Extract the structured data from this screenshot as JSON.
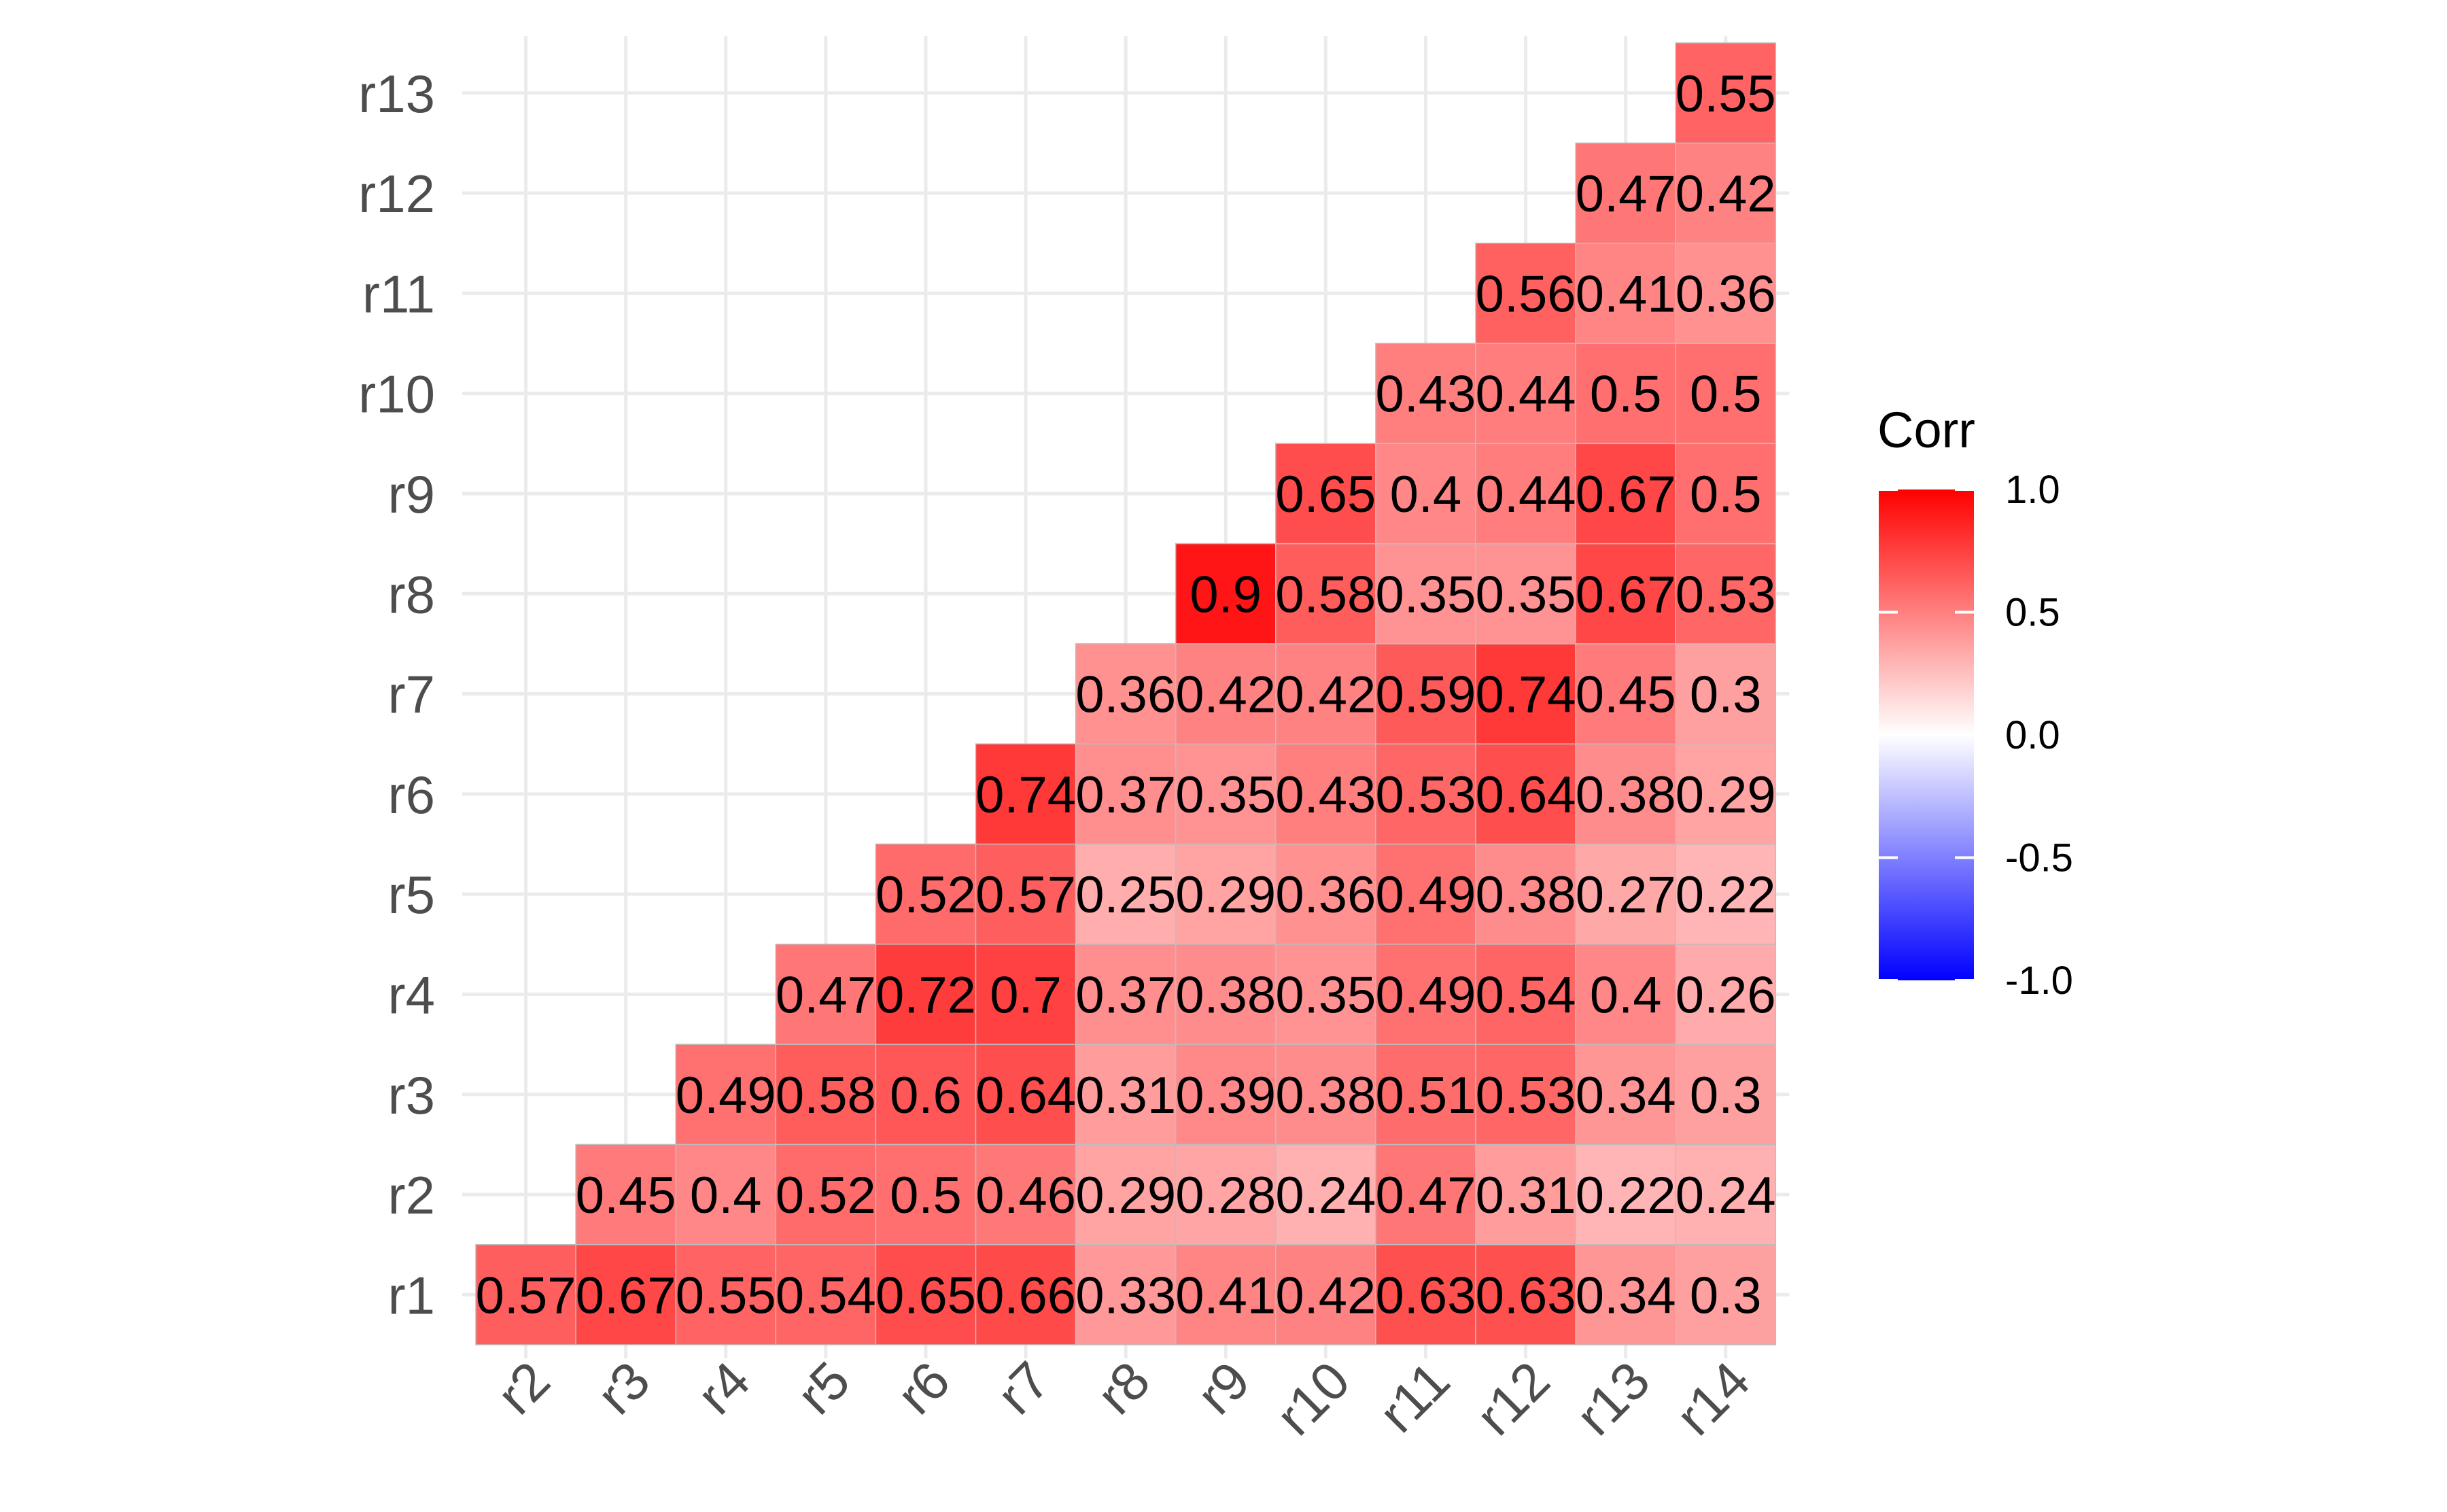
{
  "chart_data": {
    "type": "heatmap",
    "title": "",
    "xlabel": "",
    "ylabel": "",
    "x_categories": [
      "r2",
      "r3",
      "r4",
      "r5",
      "r6",
      "r7",
      "r8",
      "r9",
      "r10",
      "r11",
      "r12",
      "r13",
      "r14"
    ],
    "y_categories": [
      "r1",
      "r2",
      "r3",
      "r4",
      "r5",
      "r6",
      "r7",
      "r8",
      "r9",
      "r10",
      "r11",
      "r12",
      "r13"
    ],
    "cells": [
      {
        "x": "r2",
        "y": "r1",
        "value": 0.57
      },
      {
        "x": "r3",
        "y": "r1",
        "value": 0.67
      },
      {
        "x": "r4",
        "y": "r1",
        "value": 0.55
      },
      {
        "x": "r5",
        "y": "r1",
        "value": 0.54
      },
      {
        "x": "r6",
        "y": "r1",
        "value": 0.65
      },
      {
        "x": "r7",
        "y": "r1",
        "value": 0.66
      },
      {
        "x": "r8",
        "y": "r1",
        "value": 0.33
      },
      {
        "x": "r9",
        "y": "r1",
        "value": 0.41
      },
      {
        "x": "r10",
        "y": "r1",
        "value": 0.42
      },
      {
        "x": "r11",
        "y": "r1",
        "value": 0.63
      },
      {
        "x": "r12",
        "y": "r1",
        "value": 0.63
      },
      {
        "x": "r13",
        "y": "r1",
        "value": 0.34
      },
      {
        "x": "r14",
        "y": "r1",
        "value": 0.3
      },
      {
        "x": "r3",
        "y": "r2",
        "value": 0.45
      },
      {
        "x": "r4",
        "y": "r2",
        "value": 0.4
      },
      {
        "x": "r5",
        "y": "r2",
        "value": 0.52
      },
      {
        "x": "r6",
        "y": "r2",
        "value": 0.5
      },
      {
        "x": "r7",
        "y": "r2",
        "value": 0.46
      },
      {
        "x": "r8",
        "y": "r2",
        "value": 0.29
      },
      {
        "x": "r9",
        "y": "r2",
        "value": 0.28
      },
      {
        "x": "r10",
        "y": "r2",
        "value": 0.24
      },
      {
        "x": "r11",
        "y": "r2",
        "value": 0.47
      },
      {
        "x": "r12",
        "y": "r2",
        "value": 0.31
      },
      {
        "x": "r13",
        "y": "r2",
        "value": 0.22
      },
      {
        "x": "r14",
        "y": "r2",
        "value": 0.24
      },
      {
        "x": "r4",
        "y": "r3",
        "value": 0.49
      },
      {
        "x": "r5",
        "y": "r3",
        "value": 0.58
      },
      {
        "x": "r6",
        "y": "r3",
        "value": 0.6
      },
      {
        "x": "r7",
        "y": "r3",
        "value": 0.64
      },
      {
        "x": "r8",
        "y": "r3",
        "value": 0.31
      },
      {
        "x": "r9",
        "y": "r3",
        "value": 0.39
      },
      {
        "x": "r10",
        "y": "r3",
        "value": 0.38
      },
      {
        "x": "r11",
        "y": "r3",
        "value": 0.51
      },
      {
        "x": "r12",
        "y": "r3",
        "value": 0.53
      },
      {
        "x": "r13",
        "y": "r3",
        "value": 0.34
      },
      {
        "x": "r14",
        "y": "r3",
        "value": 0.3
      },
      {
        "x": "r5",
        "y": "r4",
        "value": 0.47
      },
      {
        "x": "r6",
        "y": "r4",
        "value": 0.72
      },
      {
        "x": "r7",
        "y": "r4",
        "value": 0.7
      },
      {
        "x": "r8",
        "y": "r4",
        "value": 0.37
      },
      {
        "x": "r9",
        "y": "r4",
        "value": 0.38
      },
      {
        "x": "r10",
        "y": "r4",
        "value": 0.35
      },
      {
        "x": "r11",
        "y": "r4",
        "value": 0.49
      },
      {
        "x": "r12",
        "y": "r4",
        "value": 0.54
      },
      {
        "x": "r13",
        "y": "r4",
        "value": 0.4
      },
      {
        "x": "r14",
        "y": "r4",
        "value": 0.26
      },
      {
        "x": "r6",
        "y": "r5",
        "value": 0.52
      },
      {
        "x": "r7",
        "y": "r5",
        "value": 0.57
      },
      {
        "x": "r8",
        "y": "r5",
        "value": 0.25
      },
      {
        "x": "r9",
        "y": "r5",
        "value": 0.29
      },
      {
        "x": "r10",
        "y": "r5",
        "value": 0.36
      },
      {
        "x": "r11",
        "y": "r5",
        "value": 0.49
      },
      {
        "x": "r12",
        "y": "r5",
        "value": 0.38
      },
      {
        "x": "r13",
        "y": "r5",
        "value": 0.27
      },
      {
        "x": "r14",
        "y": "r5",
        "value": 0.22
      },
      {
        "x": "r7",
        "y": "r6",
        "value": 0.74
      },
      {
        "x": "r8",
        "y": "r6",
        "value": 0.37
      },
      {
        "x": "r9",
        "y": "r6",
        "value": 0.35
      },
      {
        "x": "r10",
        "y": "r6",
        "value": 0.43
      },
      {
        "x": "r11",
        "y": "r6",
        "value": 0.53
      },
      {
        "x": "r12",
        "y": "r6",
        "value": 0.64
      },
      {
        "x": "r13",
        "y": "r6",
        "value": 0.38
      },
      {
        "x": "r14",
        "y": "r6",
        "value": 0.29
      },
      {
        "x": "r8",
        "y": "r7",
        "value": 0.36
      },
      {
        "x": "r9",
        "y": "r7",
        "value": 0.42
      },
      {
        "x": "r10",
        "y": "r7",
        "value": 0.42
      },
      {
        "x": "r11",
        "y": "r7",
        "value": 0.59
      },
      {
        "x": "r12",
        "y": "r7",
        "value": 0.74
      },
      {
        "x": "r13",
        "y": "r7",
        "value": 0.45
      },
      {
        "x": "r14",
        "y": "r7",
        "value": 0.3
      },
      {
        "x": "r9",
        "y": "r8",
        "value": 0.9
      },
      {
        "x": "r10",
        "y": "r8",
        "value": 0.58
      },
      {
        "x": "r11",
        "y": "r8",
        "value": 0.35
      },
      {
        "x": "r12",
        "y": "r8",
        "value": 0.35
      },
      {
        "x": "r13",
        "y": "r8",
        "value": 0.67
      },
      {
        "x": "r14",
        "y": "r8",
        "value": 0.53
      },
      {
        "x": "r10",
        "y": "r9",
        "value": 0.65
      },
      {
        "x": "r11",
        "y": "r9",
        "value": 0.4
      },
      {
        "x": "r12",
        "y": "r9",
        "value": 0.44
      },
      {
        "x": "r13",
        "y": "r9",
        "value": 0.67
      },
      {
        "x": "r14",
        "y": "r9",
        "value": 0.5
      },
      {
        "x": "r11",
        "y": "r10",
        "value": 0.43
      },
      {
        "x": "r12",
        "y": "r10",
        "value": 0.44
      },
      {
        "x": "r13",
        "y": "r10",
        "value": 0.5
      },
      {
        "x": "r14",
        "y": "r10",
        "value": 0.5
      },
      {
        "x": "r12",
        "y": "r11",
        "value": 0.56
      },
      {
        "x": "r13",
        "y": "r11",
        "value": 0.41
      },
      {
        "x": "r14",
        "y": "r11",
        "value": 0.36
      },
      {
        "x": "r13",
        "y": "r12",
        "value": 0.47
      },
      {
        "x": "r14",
        "y": "r12",
        "value": 0.42
      },
      {
        "x": "r14",
        "y": "r13",
        "value": 0.55
      }
    ],
    "color_scale": {
      "low": "#0000ff",
      "mid": "#ffffff",
      "high": "#ff0000",
      "limits": [
        -1.0,
        1.0
      ]
    },
    "legend": {
      "title": "Corr",
      "placement": "right",
      "breaks": [
        1.0,
        0.5,
        0.0,
        -0.5,
        -1.0
      ],
      "break_labels": [
        "1.0",
        "0.5",
        "0.0",
        "-0.5",
        "-1.0"
      ]
    },
    "grid": true
  }
}
